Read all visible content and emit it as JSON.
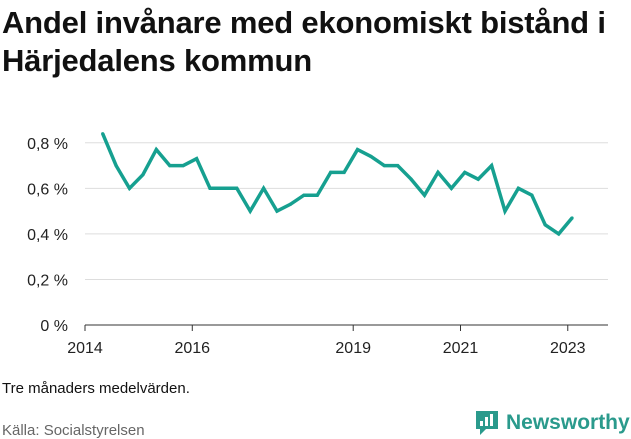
{
  "header": {
    "title": "Andel invånare med ekonomiskt bistånd i Härjedalens kommun"
  },
  "footer": {
    "note": "Tre månaders medelvärden.",
    "source": "Källa: Socialstyrelsen",
    "brand": "Newsworthy"
  },
  "colors": {
    "line": "#16a090",
    "grid": "#dddddd",
    "brand": "#2a9a8c"
  },
  "chart_data": {
    "type": "line",
    "title": "Andel invånare med ekonomiskt bistånd i Härjedalens kommun",
    "xlabel": "",
    "ylabel": "",
    "xlim": [
      2014.0,
      2023.75
    ],
    "ylim": [
      0,
      0.9
    ],
    "grid": true,
    "x_ticks": [
      2014,
      2016,
      2019,
      2021,
      2023
    ],
    "x_tick_labels": [
      "2014",
      "2016",
      "2019",
      "2021",
      "2023"
    ],
    "y_ticks": [
      0,
      0.2,
      0.4,
      0.6,
      0.8
    ],
    "y_tick_labels": [
      "0 %",
      "0,2 %",
      "0,4 %",
      "0,6 %",
      "0,8 %"
    ],
    "series": [
      {
        "x": [
          2014.33,
          2014.58,
          2014.83,
          2015.08,
          2015.33,
          2015.58,
          2015.83,
          2016.08,
          2016.33,
          2016.58,
          2016.83,
          2017.08,
          2017.33,
          2017.58,
          2017.83,
          2018.08,
          2018.33,
          2018.58,
          2018.83,
          2019.08,
          2019.33,
          2019.58,
          2019.83,
          2020.08,
          2020.33,
          2020.58,
          2020.83,
          2021.08,
          2021.33,
          2021.58,
          2021.83,
          2022.08,
          2022.33,
          2022.58,
          2022.83,
          2023.08
        ],
        "values": [
          0.84,
          0.7,
          0.6,
          0.66,
          0.77,
          0.7,
          0.7,
          0.73,
          0.6,
          0.6,
          0.6,
          0.5,
          0.6,
          0.5,
          0.53,
          0.57,
          0.57,
          0.67,
          0.67,
          0.77,
          0.74,
          0.7,
          0.7,
          0.64,
          0.57,
          0.67,
          0.6,
          0.67,
          0.64,
          0.7,
          0.5,
          0.6,
          0.57,
          0.44,
          0.4,
          0.47
        ]
      }
    ]
  }
}
